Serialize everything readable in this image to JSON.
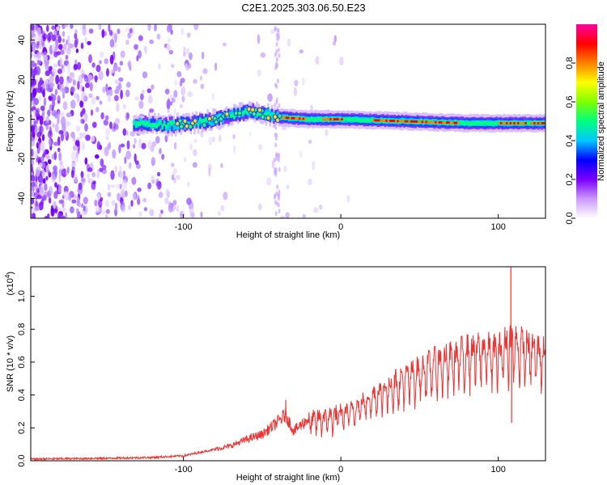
{
  "title": "C2E1.2025.303.06.50.E23",
  "chart_data": [
    {
      "type": "heatmap",
      "xlabel": "Height of straight line (km)",
      "ylabel": "Frequency (Hz)",
      "xlim": [
        -197,
        130
      ],
      "ylim": [
        -50,
        48
      ],
      "x_ticks": [
        -100,
        0,
        100
      ],
      "y_ticks": [
        -40,
        -20,
        0,
        20,
        40
      ],
      "colorbar": {
        "label": "Normalized spectral amplitude",
        "range": [
          0,
          1
        ],
        "ticks": [
          "0.0",
          "0.2",
          "0.4",
          "0.6",
          "0.8"
        ],
        "stops": [
          "#ffffff",
          "#cc99ff",
          "#7a00ff",
          "#0000ff",
          "#00c8ff",
          "#00ff80",
          "#80ff00",
          "#ffff00",
          "#ff8000",
          "#ff0000",
          "#ff00a0"
        ]
      },
      "ridge": [
        {
          "x": -130,
          "y": -2
        },
        {
          "x": -110,
          "y": -3
        },
        {
          "x": -95,
          "y": -2
        },
        {
          "x": -80,
          "y": 0
        },
        {
          "x": -70,
          "y": 2
        },
        {
          "x": -60,
          "y": 4
        },
        {
          "x": -50,
          "y": 3
        },
        {
          "x": -40,
          "y": 1
        },
        {
          "x": -20,
          "y": 0
        },
        {
          "x": 0,
          "y": 0
        },
        {
          "x": 40,
          "y": -1
        },
        {
          "x": 80,
          "y": -2
        },
        {
          "x": 100,
          "y": -2
        },
        {
          "x": 130,
          "y": -2
        }
      ]
    },
    {
      "type": "line",
      "xlabel": "Height of straight line (km)",
      "ylabel": "SNR (10 * v/v)",
      "scale_label": "(x10",
      "scale_exp": "4",
      "scale_close": ")",
      "xlim": [
        -197,
        130
      ],
      "ylim": [
        0,
        1.18
      ],
      "x_ticks": [
        -100,
        0,
        100
      ],
      "y_ticks": [
        "0.0",
        "0.2",
        "0.4",
        "0.6",
        "0.8",
        "1.0"
      ],
      "color": "#ee3333",
      "series": [
        {
          "name": "SNR",
          "points": [
            [
              -197,
              0.01
            ],
            [
              -150,
              0.015
            ],
            [
              -120,
              0.02
            ],
            [
              -100,
              0.03
            ],
            [
              -90,
              0.05
            ],
            [
              -80,
              0.07
            ],
            [
              -70,
              0.09
            ],
            [
              -60,
              0.13
            ],
            [
              -50,
              0.16
            ],
            [
              -42,
              0.22
            ],
            [
              -35,
              0.28
            ],
            [
              -30,
              0.18
            ],
            [
              -25,
              0.22
            ],
            [
              -20,
              0.26
            ],
            [
              -10,
              0.28
            ],
            [
              0,
              0.3
            ],
            [
              10,
              0.35
            ],
            [
              20,
              0.42
            ],
            [
              30,
              0.48
            ],
            [
              40,
              0.53
            ],
            [
              50,
              0.58
            ],
            [
              60,
              0.63
            ],
            [
              70,
              0.66
            ],
            [
              80,
              0.7
            ],
            [
              90,
              0.72
            ],
            [
              100,
              0.7
            ],
            [
              108,
              0.78
            ],
            [
              115,
              0.74
            ],
            [
              130,
              0.69
            ]
          ]
        }
      ],
      "spikes": [
        {
          "x": -35,
          "y": 0.37
        },
        {
          "x": 108,
          "y": 1.19
        },
        {
          "x": 108.5,
          "y": 0.23
        }
      ]
    }
  ]
}
